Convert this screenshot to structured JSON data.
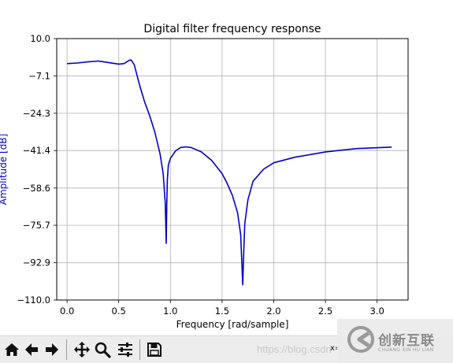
{
  "toolbar": {
    "buttons": [
      {
        "name": "home-icon"
      },
      {
        "name": "back-icon"
      },
      {
        "name": "forward-icon"
      },
      {
        "name": "pan-icon"
      },
      {
        "name": "zoom-icon"
      },
      {
        "name": "configure-subplots-icon"
      },
      {
        "name": "save-icon"
      }
    ],
    "watermark": "https://blog.csdn",
    "coord_readout": "x="
  },
  "brand": {
    "name_cn": "创新互联",
    "name_en": "CHUANG XIN HU LIAN"
  },
  "chart_data": {
    "type": "line",
    "title": "Digital filter frequency response",
    "xlabel": "Frequency [rad/sample]",
    "ylabel": "Amplitude [dB]",
    "xlim": [
      -0.1,
      3.3
    ],
    "ylim": [
      -110.0,
      10.0
    ],
    "xticks": [
      0.0,
      0.5,
      1.0,
      1.5,
      2.0,
      2.5,
      3.0
    ],
    "xtick_labels": [
      "0.0",
      "0.5",
      "1.0",
      "1.5",
      "2.0",
      "2.5",
      "3.0"
    ],
    "yticks": [
      10.0,
      -7.1,
      -24.3,
      -41.4,
      -58.6,
      -75.7,
      -92.9,
      -110.0
    ],
    "ytick_labels": [
      "10.0",
      "−7.1",
      "−24.3",
      "−41.4",
      "−58.6",
      "−75.7",
      "−92.9",
      "−110.0"
    ],
    "grid": true,
    "line_color": "#0000cc",
    "ylabel_color": "#0000cc",
    "series": [
      {
        "x": [
          0.0,
          0.1,
          0.2,
          0.3,
          0.4,
          0.5,
          0.55,
          0.6,
          0.62,
          0.65,
          0.7,
          0.75,
          0.8,
          0.85,
          0.9,
          0.93,
          0.95,
          0.96,
          0.965,
          0.97,
          0.98,
          1.0,
          1.05,
          1.1,
          1.15,
          1.2,
          1.3,
          1.4,
          1.5,
          1.55,
          1.6,
          1.65,
          1.68,
          1.7,
          1.71,
          1.72,
          1.75,
          1.8,
          1.9,
          2.0,
          2.2,
          2.5,
          2.8,
          3.1415
        ],
        "y": [
          -1.5,
          -1.2,
          -0.7,
          -0.3,
          -1.0,
          -1.7,
          -1.5,
          0.0,
          0.2,
          -2.0,
          -11.0,
          -19.0,
          -25.5,
          -33.0,
          -43.0,
          -52.0,
          -65.0,
          -84.0,
          -66.0,
          -55.0,
          -48.0,
          -45.0,
          -41.5,
          -40.0,
          -39.7,
          -40.0,
          -42.0,
          -46.0,
          -52.0,
          -56.5,
          -62.0,
          -70.0,
          -80.0,
          -103.0,
          -88.0,
          -75.0,
          -64.0,
          -55.5,
          -50.0,
          -47.0,
          -44.5,
          -42.0,
          -40.5,
          -39.8
        ]
      }
    ]
  }
}
